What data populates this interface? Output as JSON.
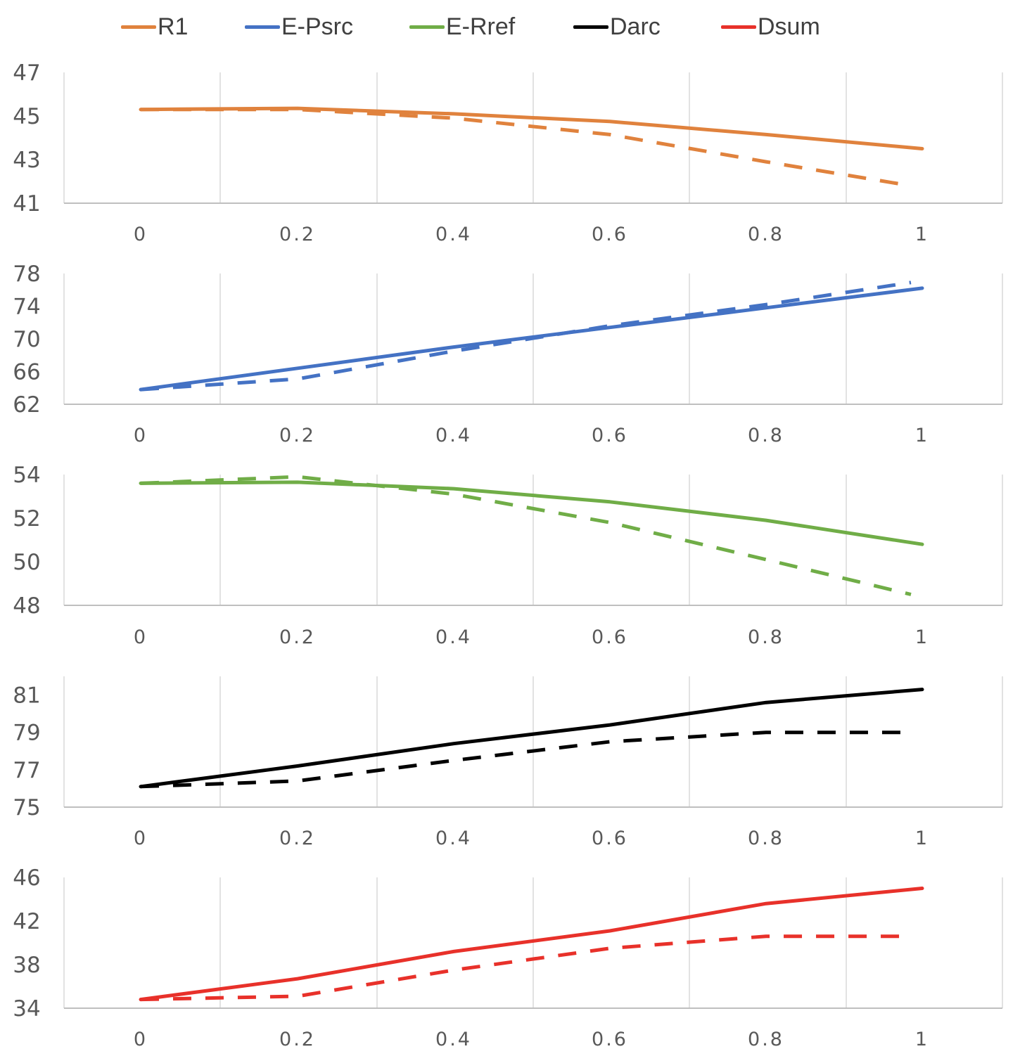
{
  "chart_data": [
    {
      "type": "line",
      "name": "R1",
      "color": "#E0823D",
      "x": [
        0,
        0.2,
        0.4,
        0.6,
        0.8,
        1
      ],
      "x_tick_labels": [
        "0",
        "0.2",
        "0.4",
        "0.6",
        "0.8",
        "1"
      ],
      "ylim": [
        41,
        47
      ],
      "y_ticks": [
        41,
        43,
        45,
        47
      ],
      "y_tick_labels": [
        "41",
        "43",
        "45",
        "47"
      ],
      "series": [
        {
          "name": "R1 (solid)",
          "style": "solid",
          "values": [
            45.3,
            45.35,
            45.1,
            44.75,
            44.15,
            43.5
          ]
        },
        {
          "name": "R1 (dashed)",
          "style": "dashed",
          "values": [
            45.3,
            45.3,
            44.9,
            44.15,
            42.9,
            41.8
          ]
        }
      ]
    },
    {
      "type": "line",
      "name": "E-Psrc",
      "color": "#4472C4",
      "x": [
        0,
        0.2,
        0.4,
        0.6,
        0.8,
        1
      ],
      "x_tick_labels": [
        "0",
        "0.2",
        "0.4",
        "0.6",
        "0.8",
        "1"
      ],
      "ylim": [
        62,
        78
      ],
      "y_ticks": [
        62,
        66,
        70,
        74,
        78
      ],
      "y_tick_labels": [
        "62",
        "66",
        "70",
        "74",
        "78"
      ],
      "series": [
        {
          "name": "E-Psrc (solid)",
          "style": "solid",
          "values": [
            63.8,
            66.4,
            69,
            71.4,
            73.8,
            76.2
          ]
        },
        {
          "name": "E-Psrc (dashed)",
          "style": "dashed",
          "values": [
            63.8,
            65.1,
            68.5,
            71.6,
            74.2,
            76.9
          ]
        }
      ]
    },
    {
      "type": "line",
      "name": "E-Rref",
      "color": "#70AD47",
      "x": [
        0,
        0.2,
        0.4,
        0.6,
        0.8,
        1
      ],
      "x_tick_labels": [
        "0",
        "0.2",
        "0.4",
        "0.6",
        "0.8",
        "1"
      ],
      "ylim": [
        48,
        54
      ],
      "y_ticks": [
        48,
        50,
        52,
        54
      ],
      "y_tick_labels": [
        "48",
        "50",
        "52",
        "54"
      ],
      "series": [
        {
          "name": "E-Rref (solid)",
          "style": "solid",
          "values": [
            53.6,
            53.65,
            53.35,
            52.75,
            51.9,
            50.8
          ]
        },
        {
          "name": "E-Rref (dashed)",
          "style": "dashed",
          "values": [
            53.6,
            53.9,
            53.1,
            51.8,
            50.1,
            48.5
          ]
        }
      ]
    },
    {
      "type": "line",
      "name": "Darc",
      "color": "#000000",
      "x": [
        0,
        0.2,
        0.4,
        0.6,
        0.8,
        1
      ],
      "x_tick_labels": [
        "0",
        "0.2",
        "0.4",
        "0.6",
        "0.8",
        "1"
      ],
      "ylim": [
        75,
        82
      ],
      "y_ticks": [
        75,
        77,
        79,
        81
      ],
      "y_tick_labels": [
        "75",
        "77",
        "79",
        "81"
      ],
      "series": [
        {
          "name": "Darc (solid)",
          "style": "solid",
          "values": [
            76.1,
            77.2,
            78.4,
            79.4,
            80.6,
            81.3
          ]
        },
        {
          "name": "Darc (dashed)",
          "style": "dashed",
          "values": [
            76.1,
            76.4,
            77.5,
            78.5,
            79,
            79
          ]
        }
      ]
    },
    {
      "type": "line",
      "name": "Dsum",
      "color": "#E8312A",
      "x": [
        0,
        0.2,
        0.4,
        0.6,
        0.8,
        1
      ],
      "x_tick_labels": [
        "0",
        "0.2",
        "0.4",
        "0.6",
        "0.8",
        "1"
      ],
      "ylim": [
        34,
        46
      ],
      "y_ticks": [
        34,
        38,
        42,
        46
      ],
      "y_tick_labels": [
        "34",
        "38",
        "42",
        "46"
      ],
      "series": [
        {
          "name": "Dsum (solid)",
          "style": "solid",
          "values": [
            34.8,
            36.7,
            39.2,
            41.1,
            43.6,
            45
          ]
        },
        {
          "name": "Dsum (dashed)",
          "style": "dashed",
          "values": [
            34.8,
            35.1,
            37.5,
            39.5,
            40.6,
            40.6
          ]
        }
      ]
    }
  ],
  "legend": [
    {
      "label": "R1",
      "color": "#E0823D"
    },
    {
      "label": "E-Psrc",
      "color": "#4472C4"
    },
    {
      "label": "E-Rref",
      "color": "#70AD47"
    },
    {
      "label": "Darc",
      "color": "#000000"
    },
    {
      "label": "Dsum",
      "color": "#E8312A"
    }
  ]
}
